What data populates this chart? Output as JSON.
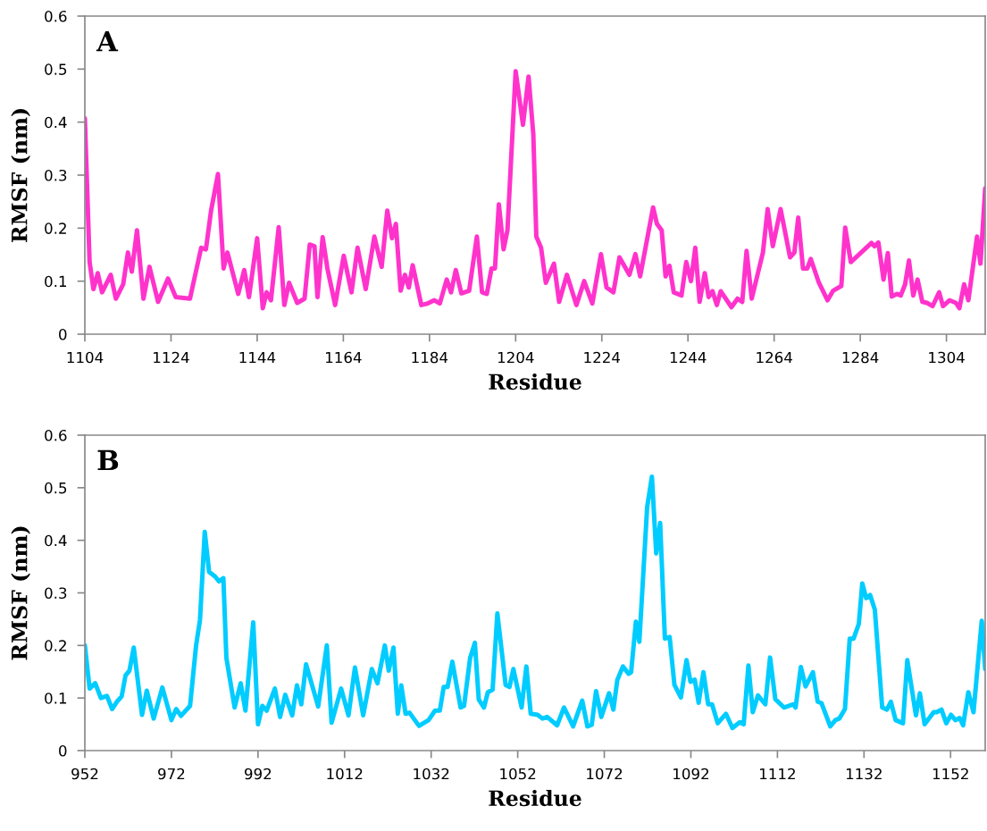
{
  "chart_data": [
    {
      "type": "line",
      "xlabel": "Residue",
      "ylabel": "RMSF (nm)",
      "annotations": [
        "A"
      ],
      "xlim": [
        1104,
        1313
      ],
      "xticks": [
        1104,
        1124,
        1144,
        1164,
        1184,
        1204,
        1224,
        1244,
        1264,
        1284,
        1304
      ],
      "ylim": [
        0,
        0.6
      ],
      "yticks": [
        0,
        0.1,
        0.2,
        0.3,
        0.4,
        0.5,
        0.6
      ],
      "grid": false,
      "marker": "none",
      "line_style": "solid",
      "x": [
        1104,
        1105.1,
        1106,
        1107,
        1108,
        1110,
        1111.2,
        1112.9,
        1114,
        1114.9,
        1116.1,
        1117.6,
        1119,
        1121,
        1123.3,
        1125.1,
        1128.4,
        1131,
        1132.1,
        1133.3,
        1134.9,
        1136.2,
        1137.1,
        1139.6,
        1141,
        1142.1,
        1144,
        1145.3,
        1146.2,
        1147.2,
        1149,
        1150.3,
        1151.4,
        1153.3,
        1155,
        1156.2,
        1157.3,
        1158,
        1159.2,
        1160.3,
        1162.1,
        1164.1,
        1165.9,
        1167.3,
        1169.2,
        1171.2,
        1172.9,
        1174.2,
        1175.3,
        1176.2,
        1177.3,
        1178.3,
        1179.2,
        1180.1,
        1182.1,
        1183.6,
        1185.1,
        1186.4,
        1188,
        1189,
        1190.1,
        1191.4,
        1193.2,
        1195,
        1196.2,
        1197.3,
        1198.4,
        1199.2,
        1200.1,
        1201.2,
        1202.1,
        1204,
        1205.7,
        1207,
        1208.1,
        1208.8,
        1209.9,
        1211,
        1212.9,
        1214.1,
        1215.9,
        1218.1,
        1219.9,
        1221.8,
        1223.8,
        1225.1,
        1226.7,
        1228.1,
        1230.4,
        1231.8,
        1232.9,
        1235.9,
        1236.8,
        1237.9,
        1238.8,
        1239.7,
        1240.7,
        1242.5,
        1243.6,
        1244.7,
        1245.7,
        1246.7,
        1247.9,
        1248.8,
        1249.7,
        1250.7,
        1251.6,
        1254.1,
        1255.5,
        1256.6,
        1257.6,
        1258.8,
        1261.4,
        1262.5,
        1263.7,
        1265.5,
        1267.7,
        1268.7,
        1269.6,
        1270.7,
        1271.7,
        1272.5,
        1274.4,
        1276.4,
        1277.7,
        1279.6,
        1280.5,
        1281.8,
        1286.6,
        1287.3,
        1288.2,
        1289.4,
        1290.4,
        1291.3,
        1292.5,
        1293.4,
        1294.4,
        1295.3,
        1296.3,
        1297.3,
        1298.4,
        1299.5,
        1300.8,
        1302.3,
        1303.2,
        1304.7,
        1306.2,
        1307,
        1308.1,
        1309.1,
        1311.1,
        1311.9,
        1313
      ],
      "series": [
        {
          "color": "#ff33cc",
          "values": [
            0.407,
            0.136,
            0.085,
            0.115,
            0.079,
            0.112,
            0.067,
            0.094,
            0.154,
            0.118,
            0.196,
            0.067,
            0.127,
            0.061,
            0.105,
            0.07,
            0.067,
            0.163,
            0.16,
            0.233,
            0.302,
            0.124,
            0.154,
            0.076,
            0.121,
            0.07,
            0.181,
            0.049,
            0.079,
            0.064,
            0.202,
            0.055,
            0.097,
            0.059,
            0.067,
            0.169,
            0.166,
            0.07,
            0.183,
            0.124,
            0.055,
            0.148,
            0.079,
            0.163,
            0.085,
            0.184,
            0.127,
            0.233,
            0.181,
            0.208,
            0.082,
            0.112,
            0.088,
            0.13,
            0.055,
            0.058,
            0.064,
            0.058,
            0.103,
            0.079,
            0.121,
            0.077,
            0.082,
            0.184,
            0.079,
            0.076,
            0.124,
            0.124,
            0.245,
            0.16,
            0.196,
            0.496,
            0.395,
            0.486,
            0.377,
            0.184,
            0.163,
            0.097,
            0.133,
            0.061,
            0.112,
            0.055,
            0.1,
            0.058,
            0.151,
            0.088,
            0.079,
            0.145,
            0.112,
            0.151,
            0.109,
            0.239,
            0.208,
            0.196,
            0.109,
            0.129,
            0.079,
            0.073,
            0.136,
            0.1,
            0.163,
            0.061,
            0.115,
            0.07,
            0.081,
            0.055,
            0.081,
            0.051,
            0.067,
            0.061,
            0.157,
            0.067,
            0.154,
            0.236,
            0.166,
            0.236,
            0.145,
            0.154,
            0.22,
            0.124,
            0.124,
            0.142,
            0.097,
            0.064,
            0.082,
            0.091,
            0.201,
            0.136,
            0.172,
            0.166,
            0.173,
            0.103,
            0.153,
            0.071,
            0.076,
            0.073,
            0.094,
            0.139,
            0.073,
            0.103,
            0.061,
            0.059,
            0.053,
            0.079,
            0.053,
            0.064,
            0.059,
            0.049,
            0.094,
            0.064,
            0.184,
            0.133,
            0.275
          ]
        }
      ]
    },
    {
      "type": "line",
      "xlabel": "Residue",
      "ylabel": "RMSF (nm)",
      "annotations": [
        "B"
      ],
      "xlim": [
        952,
        1160
      ],
      "xticks": [
        952,
        972,
        992,
        1012,
        1032,
        1052,
        1072,
        1092,
        1112,
        1132,
        1152
      ],
      "ylim": [
        0,
        0.6
      ],
      "yticks": [
        0,
        0.1,
        0.2,
        0.3,
        0.4,
        0.5,
        0.6
      ],
      "grid": false,
      "marker": "none",
      "line_style": "solid",
      "x": [
        952,
        953.1,
        954.4,
        955.7,
        957.1,
        958.3,
        959.5,
        960.5,
        961.4,
        962.3,
        963.3,
        965.2,
        966.3,
        967.9,
        969.9,
        972,
        973.1,
        974.2,
        976.3,
        977.7,
        978.6,
        979.7,
        980.7,
        982.1,
        983,
        984,
        984.7,
        986.6,
        988,
        989.1,
        990.9,
        992,
        993,
        994,
        995.9,
        997.1,
        998.3,
        999.9,
        1001,
        1002,
        1003.1,
        1005.9,
        1007.9,
        1009,
        1011.2,
        1012.9,
        1014.4,
        1016.3,
        1018.3,
        1019.6,
        1021.3,
        1022.2,
        1023.3,
        1024.3,
        1025.1,
        1026.1,
        1027,
        1029.2,
        1031.4,
        1032.9,
        1034,
        1034.9,
        1035.8,
        1036.9,
        1038.8,
        1039.6,
        1041,
        1042.1,
        1043,
        1044.2,
        1045.1,
        1046.2,
        1047.3,
        1049.2,
        1050.1,
        1051,
        1052.9,
        1054,
        1055,
        1056.6,
        1057.7,
        1058.8,
        1061.1,
        1062.7,
        1064.8,
        1066.9,
        1068.1,
        1069.1,
        1070.1,
        1071.3,
        1073.1,
        1074.1,
        1075,
        1076.3,
        1077.6,
        1078.2,
        1079.3,
        1080.1,
        1081.9,
        1083,
        1084,
        1084.9,
        1086,
        1087.1,
        1088.2,
        1089.7,
        1091,
        1091.9,
        1092.9,
        1093.8,
        1094.9,
        1096,
        1096.9,
        1098.2,
        1100.1,
        1101.6,
        1103.3,
        1104.2,
        1105.3,
        1106.3,
        1107.5,
        1109.2,
        1110.3,
        1111.5,
        1113.5,
        1115.7,
        1116.2,
        1117.4,
        1118.5,
        1120.2,
        1121.3,
        1122.2,
        1124.2,
        1125.4,
        1126.3,
        1127.6,
        1128.7,
        1129.6,
        1130.8,
        1131.6,
        1132.5,
        1133.4,
        1134.5,
        1136.2,
        1137.3,
        1138.2,
        1139.3,
        1141,
        1142,
        1144,
        1144.9,
        1146,
        1148.1,
        1148.8,
        1149.9,
        1151,
        1152.1,
        1153.1,
        1154.1,
        1154.9,
        1156.1,
        1157.3,
        1159.2,
        1160
      ],
      "series": [
        {
          "color": "#00ccff",
          "values": [
            0.2,
            0.118,
            0.128,
            0.1,
            0.104,
            0.079,
            0.094,
            0.103,
            0.143,
            0.152,
            0.196,
            0.068,
            0.114,
            0.061,
            0.12,
            0.058,
            0.079,
            0.066,
            0.085,
            0.2,
            0.249,
            0.416,
            0.34,
            0.331,
            0.322,
            0.328,
            0.176,
            0.082,
            0.128,
            0.076,
            0.244,
            0.05,
            0.085,
            0.076,
            0.118,
            0.064,
            0.106,
            0.067,
            0.124,
            0.088,
            0.164,
            0.084,
            0.2,
            0.053,
            0.118,
            0.067,
            0.158,
            0.067,
            0.155,
            0.128,
            0.2,
            0.152,
            0.196,
            0.07,
            0.124,
            0.07,
            0.072,
            0.047,
            0.058,
            0.076,
            0.076,
            0.121,
            0.121,
            0.169,
            0.082,
            0.085,
            0.176,
            0.205,
            0.097,
            0.082,
            0.111,
            0.116,
            0.261,
            0.125,
            0.121,
            0.155,
            0.082,
            0.16,
            0.07,
            0.068,
            0.061,
            0.064,
            0.048,
            0.082,
            0.046,
            0.095,
            0.046,
            0.049,
            0.113,
            0.064,
            0.109,
            0.078,
            0.134,
            0.16,
            0.146,
            0.149,
            0.245,
            0.207,
            0.463,
            0.521,
            0.375,
            0.433,
            0.213,
            0.216,
            0.125,
            0.101,
            0.172,
            0.131,
            0.135,
            0.091,
            0.149,
            0.088,
            0.088,
            0.052,
            0.07,
            0.043,
            0.054,
            0.05,
            0.162,
            0.073,
            0.105,
            0.088,
            0.177,
            0.098,
            0.082,
            0.088,
            0.082,
            0.159,
            0.122,
            0.149,
            0.093,
            0.09,
            0.046,
            0.058,
            0.061,
            0.079,
            0.213,
            0.213,
            0.241,
            0.318,
            0.29,
            0.296,
            0.268,
            0.082,
            0.078,
            0.093,
            0.058,
            0.052,
            0.172,
            0.067,
            0.109,
            0.05,
            0.073,
            0.073,
            0.078,
            0.052,
            0.068,
            0.058,
            0.062,
            0.048,
            0.111,
            0.073,
            0.247,
            0.155
          ]
        }
      ]
    }
  ]
}
